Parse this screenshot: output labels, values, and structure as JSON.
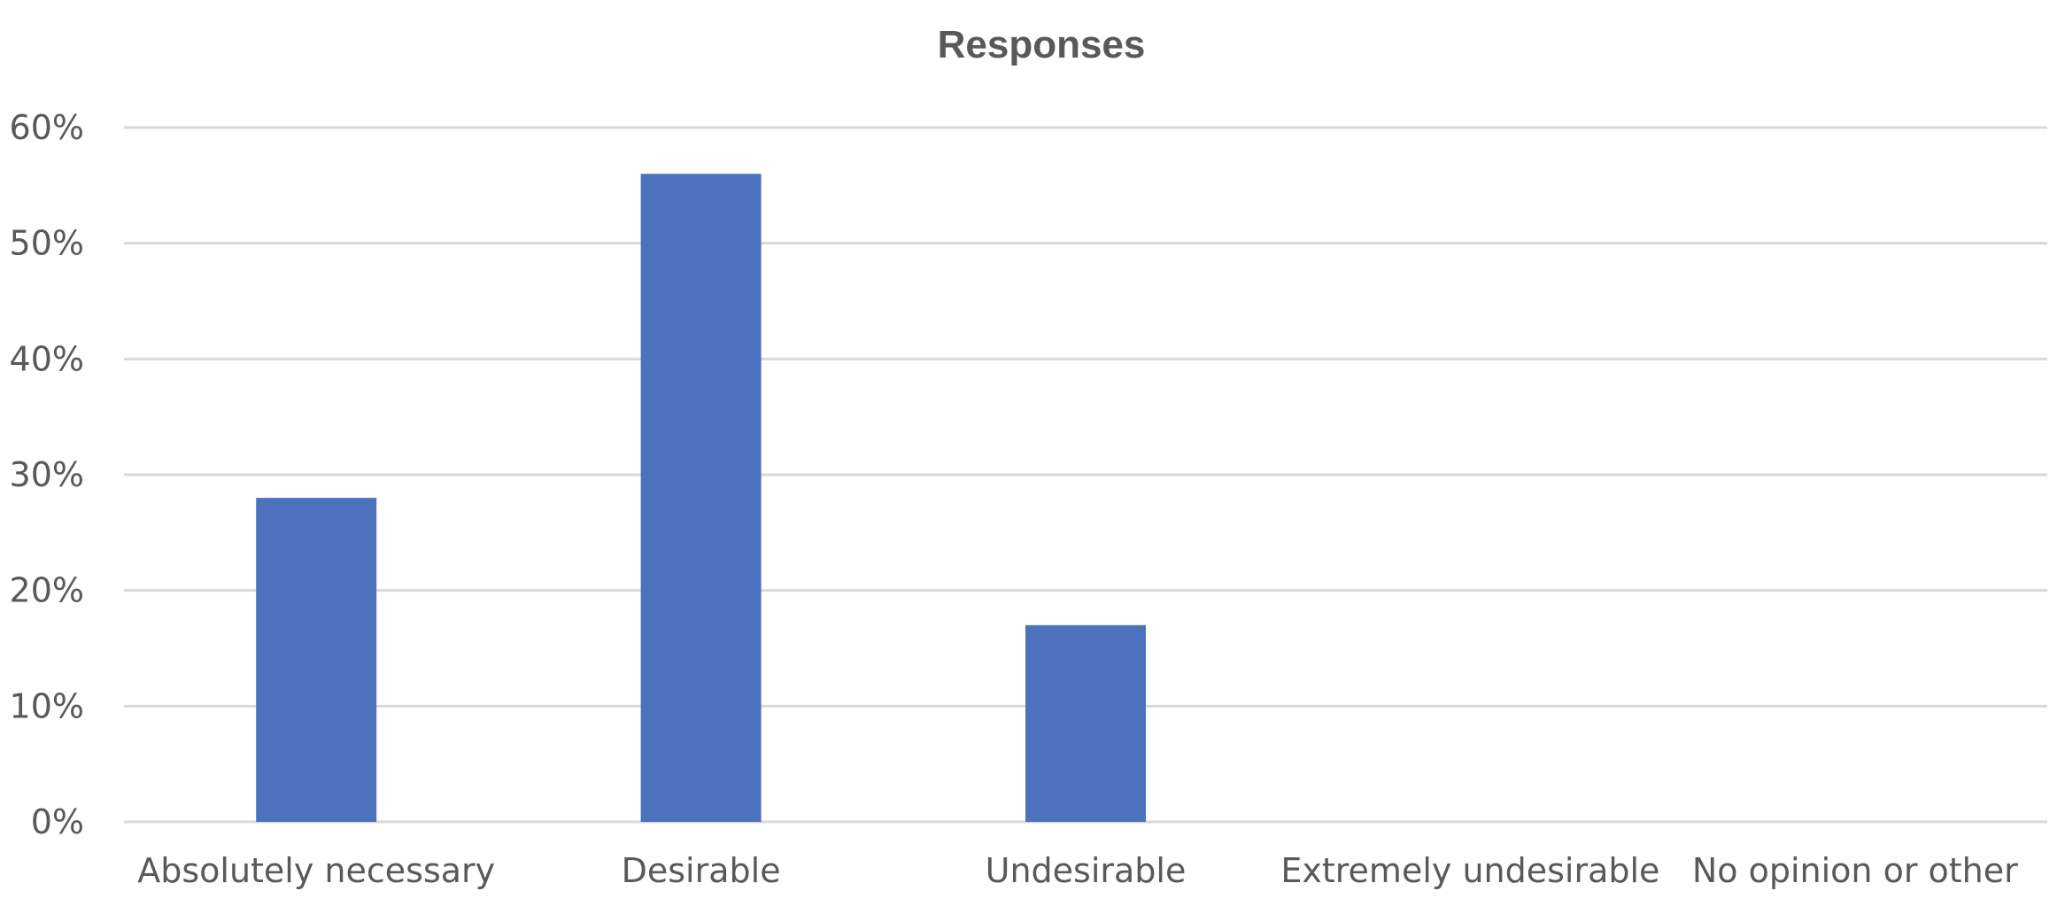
{
  "chart_data": {
    "type": "bar",
    "title": "Responses",
    "xlabel": "",
    "ylabel": "",
    "categories": [
      "Absolutely necessary",
      "Desirable",
      "Undesirable",
      "Extremely undesirable",
      "No opinion or other"
    ],
    "series": [
      {
        "values": [
          28,
          56,
          17,
          0,
          0
        ]
      }
    ],
    "ylim": [
      0,
      60
    ],
    "yticks": [
      0,
      10,
      20,
      30,
      40,
      50,
      60
    ],
    "ytick_labels": [
      "0%",
      "10%",
      "20%",
      "30%",
      "40%",
      "50%",
      "60%"
    ],
    "grid": true,
    "legend": "none",
    "colors": {
      "bar": "#4C72BE",
      "grid": "#D9D9D9",
      "text": "#595959"
    }
  }
}
